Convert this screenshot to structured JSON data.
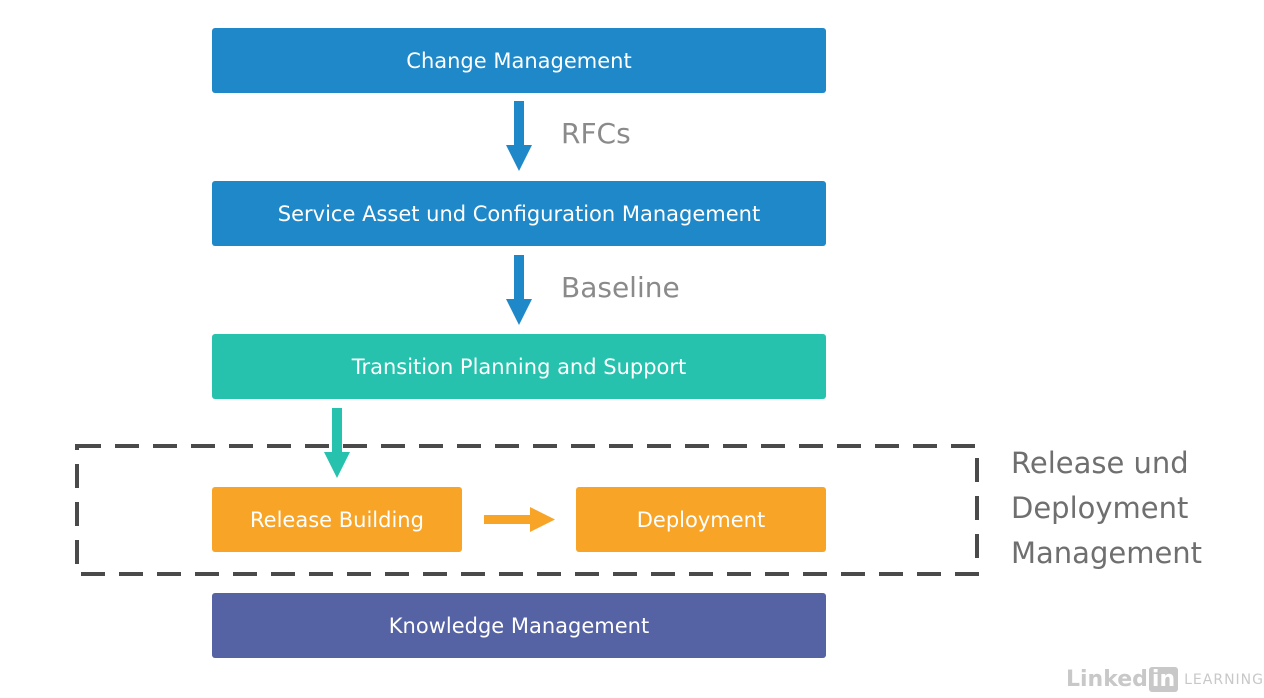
{
  "nodes": {
    "change_management": "Change Management",
    "service_asset": "Service Asset und Configuration Management",
    "transition_planning": "Transition Planning and Support",
    "release_building": "Release Building",
    "deployment": "Deployment",
    "knowledge_management": "Knowledge Management"
  },
  "edges": {
    "rfcs": "RFCs",
    "baseline": "Baseline"
  },
  "group": {
    "label": "Release und\nDeployment\nManagement"
  },
  "watermark": {
    "brand_linked": "Linked",
    "brand_in": "in",
    "product": "LEARNING"
  },
  "colors": {
    "blue": "#1e88c8",
    "teal": "#27c2ad",
    "orange": "#f7a427",
    "purple": "#5562a4"
  }
}
